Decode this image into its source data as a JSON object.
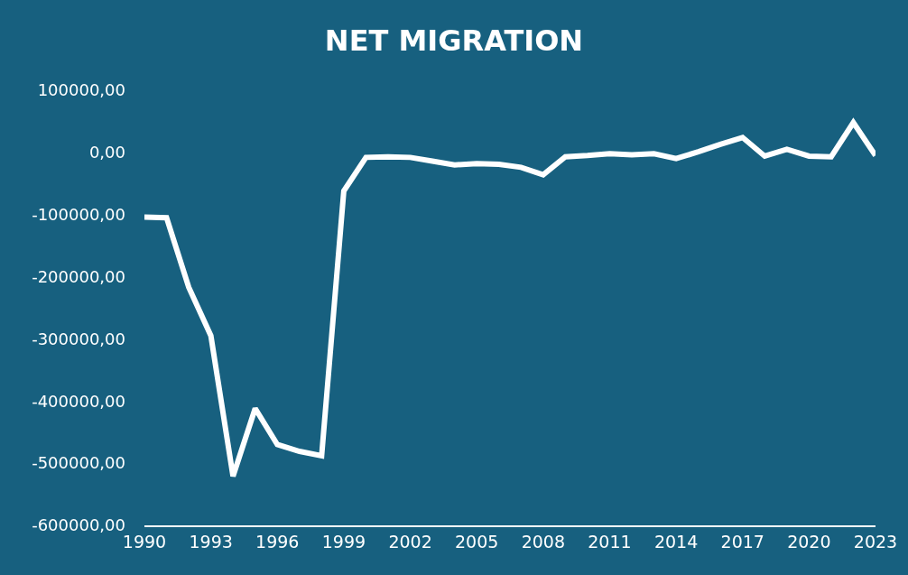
{
  "chart_data": {
    "type": "line",
    "title": "NET MIGRATION",
    "x": [
      1990,
      1991,
      1992,
      1993,
      1994,
      1995,
      1996,
      1997,
      1998,
      1999,
      2000,
      2001,
      2002,
      2003,
      2004,
      2005,
      2006,
      2007,
      2008,
      2009,
      2010,
      2011,
      2012,
      2013,
      2014,
      2015,
      2016,
      2017,
      2018,
      2019,
      2020,
      2021,
      2022,
      2023
    ],
    "series": [
      {
        "color": "#ffffff",
        "values": [
          -104000,
          -105000,
          -217000,
          -295000,
          -521000,
          -412000,
          -470000,
          -481000,
          -488000,
          -62000,
          -8000,
          -7000,
          -8000,
          -14000,
          -20000,
          -18000,
          -19000,
          -24000,
          -36000,
          -7000,
          -5000,
          -2000,
          -4000,
          -2000,
          -10000,
          1000,
          13000,
          24000,
          -6000,
          5000,
          -6000,
          -7000,
          48000,
          -5000
        ]
      }
    ],
    "xlim": [
      1990,
      2023
    ],
    "xticks": [
      1990,
      1993,
      1996,
      1999,
      2002,
      2005,
      2008,
      2011,
      2014,
      2017,
      2020,
      2023
    ],
    "ylim": [
      -600000,
      100000
    ],
    "yticks": [
      {
        "value": -600000,
        "label": "-600000,00"
      },
      {
        "value": -500000,
        "label": "-500000,00"
      },
      {
        "value": -400000,
        "label": "-400000,00"
      },
      {
        "value": -300000,
        "label": "-300000,00"
      },
      {
        "value": -200000,
        "label": "-200000,00"
      },
      {
        "value": -100000,
        "label": "-100000,00"
      },
      {
        "value": 0,
        "label": "0,00"
      },
      {
        "value": 100000,
        "label": "100000,00"
      }
    ],
    "grid": false,
    "legend": false,
    "marker": "none",
    "line_style": "solid"
  }
}
